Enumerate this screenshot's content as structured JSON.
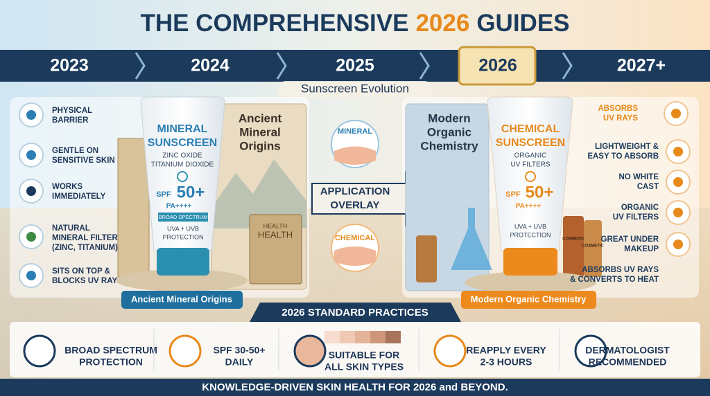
{
  "header": {
    "title_pre": "THE COMPREHENSIVE",
    "title_highlight": "2026",
    "title_post": "GUIDES"
  },
  "timeline": [
    "2023",
    "2024",
    "2025",
    "2026",
    "2027+"
  ],
  "section_title": "Sunscreen Evolution",
  "left_features": [
    {
      "lines": [
        "PHYSICAL",
        "BARRIER"
      ]
    },
    {
      "lines": [
        "GENTLE ON",
        "SENSITIVE SKIN"
      ]
    },
    {
      "lines": [
        "WORKS",
        "IMMEDIATELY"
      ]
    },
    {
      "lines": [
        "NATURAL",
        "MINERAL FILTERS",
        "(ZINC, TITANIUM)"
      ]
    },
    {
      "lines": [
        "SITS ON TOP &",
        "BLOCKS UV RAYS"
      ]
    }
  ],
  "mineral_product": {
    "brand": [
      "MINERAL",
      "SUNSCREEN"
    ],
    "ingredients": [
      "ZINC OXIDE",
      "TITANIUM DIOXIDE"
    ],
    "spf_prefix": "SPF",
    "spf": "50+",
    "pa": "PA++++",
    "badge": "BROAD SPECTRUM",
    "protection": [
      "UVA + UVB",
      "PROTECTION"
    ]
  },
  "ancient": {
    "title": [
      "Ancient",
      "Mineral",
      "Origins"
    ],
    "book": [
      "HEALTH",
      "HEALTH"
    ],
    "caption": "Ancient Mineral Origins"
  },
  "center": {
    "mineral": "MINERAL",
    "overlay": [
      "APPLICATION",
      "OVERLAY"
    ],
    "chemical": "CHEMICAL"
  },
  "modern": {
    "title": [
      "Modern",
      "Organic",
      "Chemistry"
    ],
    "bottles": [
      "COSMETIC",
      "COSMETIC"
    ],
    "caption": "Modern Organic Chemistry"
  },
  "chemical_product": {
    "brand": [
      "CHEMICAL",
      "SUNSCREEN"
    ],
    "filters": [
      "ORGANIC",
      "UV FILTERS"
    ],
    "spf_prefix": "SPF",
    "spf": "50+",
    "pa": "PA++++",
    "protection": [
      "UVA + UVB",
      "PROTECTION"
    ]
  },
  "right_features": [
    {
      "lines": [
        "ABSORBS",
        "UV RAYS"
      ]
    },
    {
      "lines": [
        "LIGHTWEIGHT &",
        "EASY TO ABSORB"
      ]
    },
    {
      "lines": [
        "NO WHITE",
        "CAST"
      ]
    },
    {
      "lines": [
        "ORGANIC",
        "UV FILTERS"
      ]
    },
    {
      "lines": [
        "GREAT UNDER",
        "MAKEUP"
      ]
    },
    {
      "lines": [
        "ABSORBS UV RAYS",
        "& CONVERTS TO HEAT"
      ]
    }
  ],
  "practices": {
    "title": "2026 STANDARD PRACTICES",
    "items": [
      {
        "lines": [
          "BROAD SPECTRUM",
          "PROTECTION"
        ]
      },
      {
        "lines": [
          "SPF 30-50+",
          "DAILY"
        ]
      },
      {
        "lines": [
          "SUITABLE FOR",
          "ALL SKIN TYPES"
        ]
      },
      {
        "lines": [
          "REAPPLY EVERY",
          "2-3 HOURS"
        ]
      },
      {
        "lines": [
          "DERMATOLOGIST",
          "RECOMMENDED"
        ]
      }
    ]
  },
  "footer": "KNOWLEDGE-DRIVEN SKIN HEALTH FOR 2026 and BEYOND."
}
